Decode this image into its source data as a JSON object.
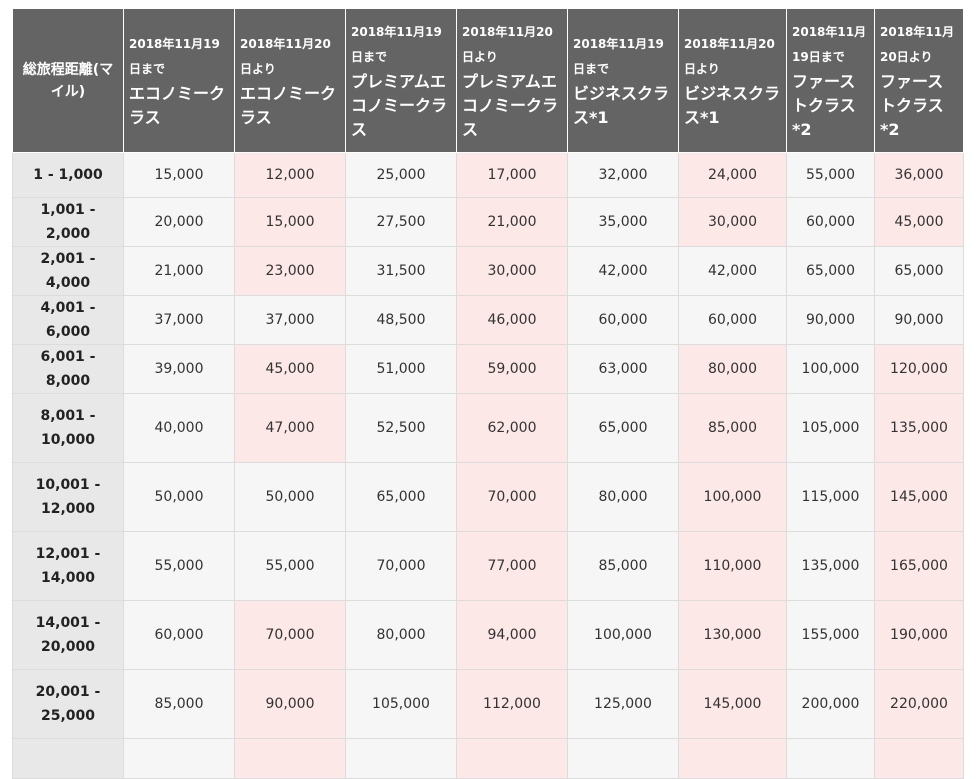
{
  "columns": [
    {
      "date": "2018年11月19日まで",
      "class": "エコノミークラス"
    },
    {
      "date": "2018年11月20日より",
      "class": "エコノミークラス"
    },
    {
      "date": "2018年11月19日まで",
      "class": "プレミアムエコノミークラス"
    },
    {
      "date": "2018年11月20日より",
      "class": "プレミアムエコノミークラス"
    },
    {
      "date": "2018年11月19日まで",
      "class": "ビジネスクラス*1"
    },
    {
      "date": "2018年11月20日より",
      "class": "ビジネスクラス*1"
    },
    {
      "date": "2018年11月19日まで",
      "class": "ファーストクラス*2"
    },
    {
      "date": "2018年11月20日より",
      "class": "ファーストクラス*2"
    }
  ],
  "header": {
    "distance": "総旅程距離(マイル)"
  },
  "rows": [
    {
      "distance": "1 - 1,000",
      "values": [
        "15,000",
        "12,000",
        "25,000",
        "17,000",
        "32,000",
        "24,000",
        "55,000",
        "36,000"
      ],
      "highlight": [
        false,
        true,
        false,
        true,
        false,
        true,
        false,
        true
      ]
    },
    {
      "distance": "1,001 - 2,000",
      "values": [
        "20,000",
        "15,000",
        "27,500",
        "21,000",
        "35,000",
        "30,000",
        "60,000",
        "45,000"
      ],
      "highlight": [
        false,
        true,
        false,
        true,
        false,
        true,
        false,
        true
      ]
    },
    {
      "distance": "2,001 - 4,000",
      "values": [
        "21,000",
        "23,000",
        "31,500",
        "30,000",
        "42,000",
        "42,000",
        "65,000",
        "65,000"
      ],
      "highlight": [
        false,
        true,
        false,
        true,
        false,
        false,
        false,
        false
      ]
    },
    {
      "distance": "4,001 - 6,000",
      "values": [
        "37,000",
        "37,000",
        "48,500",
        "46,000",
        "60,000",
        "60,000",
        "90,000",
        "90,000"
      ],
      "highlight": [
        false,
        false,
        false,
        true,
        false,
        false,
        false,
        false
      ]
    },
    {
      "distance": "6,001 - 8,000",
      "values": [
        "39,000",
        "45,000",
        "51,000",
        "59,000",
        "63,000",
        "80,000",
        "100,000",
        "120,000"
      ],
      "highlight": [
        false,
        true,
        false,
        true,
        false,
        true,
        false,
        true
      ]
    },
    {
      "distance": "8,001 - 10,000",
      "values": [
        "40,000",
        "47,000",
        "52,500",
        "62,000",
        "65,000",
        "85,000",
        "105,000",
        "135,000"
      ],
      "highlight": [
        false,
        true,
        false,
        true,
        false,
        true,
        false,
        true
      ]
    },
    {
      "distance": "10,001 - 12,000",
      "values": [
        "50,000",
        "50,000",
        "65,000",
        "70,000",
        "80,000",
        "100,000",
        "115,000",
        "145,000"
      ],
      "highlight": [
        false,
        false,
        false,
        true,
        false,
        true,
        false,
        true
      ]
    },
    {
      "distance": "12,001 - 14,000",
      "values": [
        "55,000",
        "55,000",
        "70,000",
        "77,000",
        "85,000",
        "110,000",
        "135,000",
        "165,000"
      ],
      "highlight": [
        false,
        false,
        false,
        true,
        false,
        true,
        false,
        true
      ]
    },
    {
      "distance": "14,001 - 20,000",
      "values": [
        "60,000",
        "70,000",
        "80,000",
        "94,000",
        "100,000",
        "130,000",
        "155,000",
        "190,000"
      ],
      "highlight": [
        false,
        true,
        false,
        true,
        false,
        true,
        false,
        true
      ]
    },
    {
      "distance": "20,001 - 25,000",
      "values": [
        "85,000",
        "90,000",
        "105,000",
        "112,000",
        "125,000",
        "145,000",
        "200,000",
        "220,000"
      ],
      "highlight": [
        false,
        true,
        false,
        true,
        false,
        true,
        false,
        true
      ]
    },
    {
      "distance": "",
      "values": [
        "",
        "",
        "",
        "",
        "",
        "",
        "",
        ""
      ],
      "highlight": [
        false,
        true,
        false,
        true,
        false,
        true,
        false,
        true
      ]
    }
  ]
}
